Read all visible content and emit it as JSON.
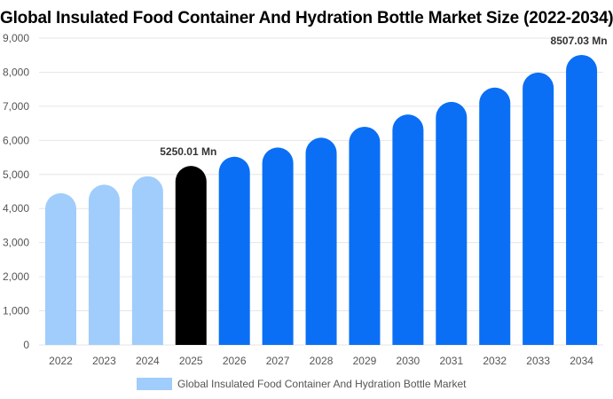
{
  "chart_data": {
    "type": "bar",
    "title": "Global Insulated Food Container And Hydration Bottle Market Size (2022-2034)",
    "categories": [
      "2022",
      "2023",
      "2024",
      "2025",
      "2026",
      "2027",
      "2028",
      "2029",
      "2030",
      "2031",
      "2032",
      "2033",
      "2034"
    ],
    "series": [
      {
        "name": "Global Insulated Food Container And Hydration Bottle Market",
        "values": [
          4450,
          4700,
          4950,
          5250.01,
          5520,
          5790,
          6080,
          6400,
          6760,
          7130,
          7550,
          7990,
          8507.03
        ]
      }
    ],
    "ylim": [
      0,
      9000
    ],
    "yticks": [
      "0",
      "1,000",
      "2,000",
      "3,000",
      "4,000",
      "5,000",
      "6,000",
      "7,000",
      "8,000",
      "9,000"
    ],
    "ytick_values": [
      0,
      1000,
      2000,
      3000,
      4000,
      5000,
      6000,
      7000,
      8000,
      9000
    ],
    "data_labels": [
      {
        "index": 3,
        "text": "5250.01 Mn"
      },
      {
        "index": 12,
        "text": "8507.03 Mn"
      }
    ],
    "colors": {
      "historical": "#a0cdfc",
      "base_year": "#000000",
      "forecast": "#0a6ff5",
      "grid": "#e6e6e6"
    },
    "base_year_index": 3,
    "grid": true,
    "legend_position": "bottom"
  }
}
